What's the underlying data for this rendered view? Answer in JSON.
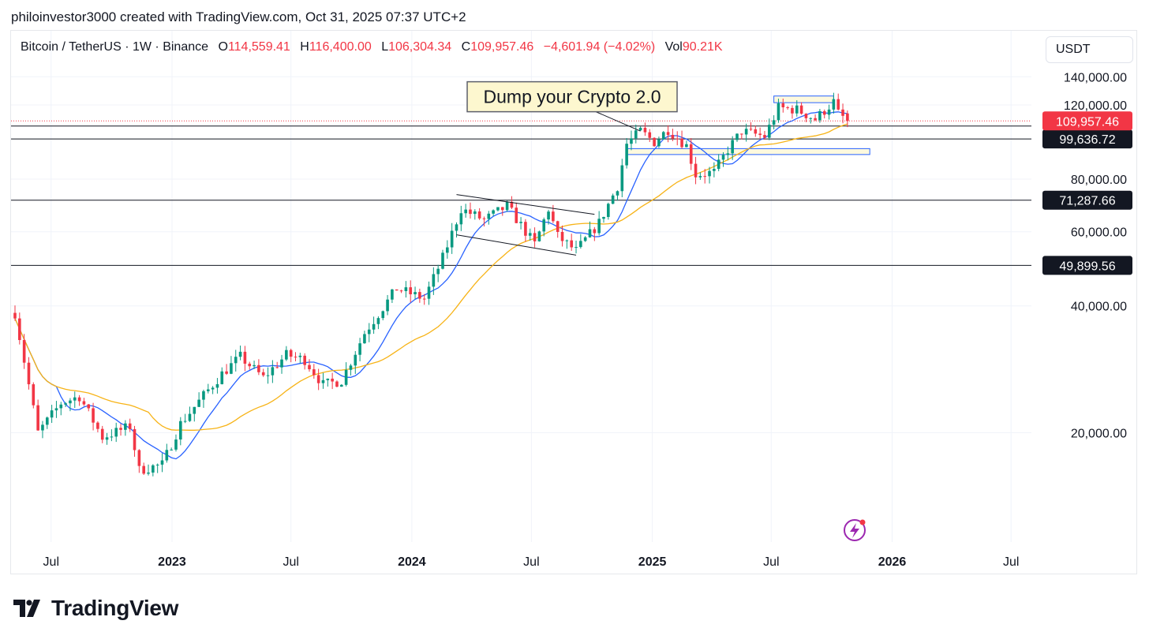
{
  "attribution": "philoinvestor3000 created with TradingView.com, Oct 31, 2025 07:37 UTC+2",
  "brand": "TradingView",
  "legend": {
    "symbol": "Bitcoin / TetherUS · 1W · Binance",
    "open_label": "O",
    "open": "114,559.41",
    "high_label": "H",
    "high": "116,400.00",
    "low_label": "L",
    "low": "106,304.34",
    "close_label": "C",
    "close": "109,957.46",
    "change": "−4,601.94 (−4.02%)",
    "vol_label": "Vol",
    "vol": "90.21K"
  },
  "currency": "USDT",
  "colors": {
    "up": "#089981",
    "down": "#f23645",
    "ma_fast": "#2962ff",
    "ma_slow": "#f7b316",
    "grid": "#f0f3fa",
    "text": "#131722",
    "zone_fill": "#fdf8d8",
    "zone_stroke": "#2962ff",
    "callout_fill": "#fdf7cf"
  },
  "chart_data": {
    "type": "candlestick",
    "symbol": "BTCUSDT",
    "interval": "1W",
    "y_scale": "log",
    "ylim": [
      11000,
      180000
    ],
    "xlim": [
      "2022-05-01",
      "2026-08-01"
    ],
    "y_ticks": [
      "140,000.00",
      "120,000.00",
      "80,000.00",
      "60,000.00",
      "40,000.00",
      "20,000.00"
    ],
    "x_ticks": [
      {
        "date": "2022-07-01",
        "label": "Jul",
        "bold": false
      },
      {
        "date": "2023-01-01",
        "label": "2023",
        "bold": true
      },
      {
        "date": "2023-07-01",
        "label": "Jul",
        "bold": false
      },
      {
        "date": "2024-01-01",
        "label": "2024",
        "bold": true
      },
      {
        "date": "2024-07-01",
        "label": "Jul",
        "bold": false
      },
      {
        "date": "2025-01-01",
        "label": "2025",
        "bold": true
      },
      {
        "date": "2025-07-01",
        "label": "Jul",
        "bold": false
      },
      {
        "date": "2026-01-01",
        "label": "2026",
        "bold": true
      },
      {
        "date": "2026-07-01",
        "label": "Jul",
        "bold": false
      }
    ],
    "last_price": {
      "value": 109957.46,
      "label": "109,957.46"
    },
    "horizontal_levels": [
      {
        "value": 99636.72,
        "label": "99,636.72"
      },
      {
        "value": 71287.66,
        "label": "71,287.66"
      },
      {
        "value": 49899.56,
        "label": "49,899.56"
      },
      {
        "value": 106900,
        "label": ""
      }
    ],
    "anchors": [
      [
        "2022-05-07",
        38500
      ],
      [
        "2022-06-11",
        20000
      ],
      [
        "2022-07-16",
        23500
      ],
      [
        "2022-08-13",
        24400
      ],
      [
        "2022-09-17",
        19500
      ],
      [
        "2022-10-29",
        20700
      ],
      [
        "2022-11-12",
        16300
      ],
      [
        "2022-12-17",
        16800
      ],
      [
        "2023-01-14",
        21000
      ],
      [
        "2023-02-18",
        24500
      ],
      [
        "2023-03-18",
        27600
      ],
      [
        "2023-04-15",
        30300
      ],
      [
        "2023-05-20",
        27000
      ],
      [
        "2023-06-24",
        30600
      ],
      [
        "2023-07-22",
        29800
      ],
      [
        "2023-08-19",
        26000
      ],
      [
        "2023-09-16",
        26600
      ],
      [
        "2023-10-21",
        34500
      ],
      [
        "2023-12-09",
        44000
      ],
      [
        "2024-01-20",
        41600
      ],
      [
        "2024-02-17",
        52000
      ],
      [
        "2024-03-16",
        68000
      ],
      [
        "2024-04-20",
        64000
      ],
      [
        "2024-05-25",
        69000
      ],
      [
        "2024-07-06",
        56000
      ],
      [
        "2024-07-27",
        68000
      ],
      [
        "2024-08-10",
        58500
      ],
      [
        "2024-09-07",
        54000
      ],
      [
        "2024-10-12",
        63000
      ],
      [
        "2024-11-09",
        77000
      ],
      [
        "2024-11-23",
        97000
      ],
      [
        "2024-12-14",
        104000
      ],
      [
        "2025-01-04",
        98000
      ],
      [
        "2025-01-25",
        105000
      ],
      [
        "2025-02-22",
        96000
      ],
      [
        "2025-03-08",
        82000
      ],
      [
        "2025-04-05",
        83000
      ],
      [
        "2025-04-26",
        94000
      ],
      [
        "2025-05-17",
        104000
      ],
      [
        "2025-06-21",
        101000
      ],
      [
        "2025-07-12",
        118000
      ],
      [
        "2025-08-09",
        117000
      ],
      [
        "2025-09-06",
        111000
      ],
      [
        "2025-10-04",
        122000
      ],
      [
        "2025-10-11",
        114500
      ],
      [
        "2025-10-25",
        110000
      ]
    ],
    "annotations": [
      {
        "type": "callout",
        "text": "Dump your Crypto 2.0",
        "date": "2024-09-01",
        "value": 125500,
        "target_date": "2024-12-14",
        "target_value": 104000
      },
      {
        "type": "channel",
        "start": [
          "2024-03-09",
          73500
        ],
        "end": [
          "2024-10-05",
          66000
        ],
        "lower_start": [
          "2024-03-09",
          59000
        ],
        "lower_end": [
          "2024-09-07",
          52800
        ]
      },
      {
        "type": "zone",
        "x1": "2025-07-05",
        "x2": "2025-10-04",
        "y1": 121500,
        "y2": 126000
      },
      {
        "type": "zone",
        "x1": "2024-11-23",
        "x2": "2025-11-28",
        "y1": 91500,
        "y2": 94500
      }
    ],
    "moving_averages": [
      {
        "kind": "fast",
        "color_key": "ma_fast",
        "period": 10
      },
      {
        "kind": "slow",
        "color_key": "ma_slow",
        "period": 30
      }
    ]
  }
}
